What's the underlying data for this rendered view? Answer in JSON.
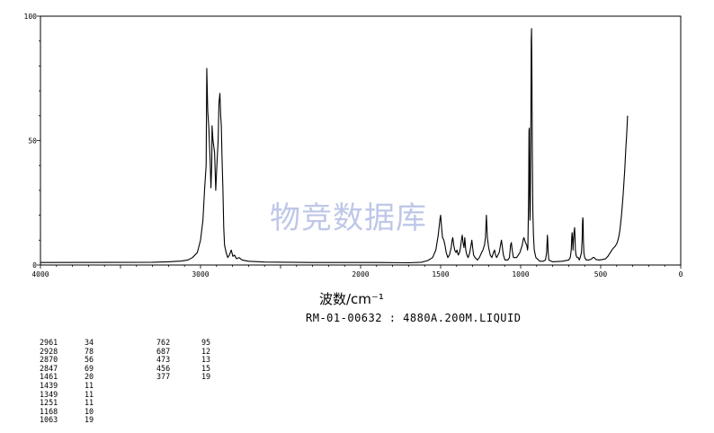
{
  "chart_data": {
    "type": "line",
    "title": "",
    "xlabel": "波数/cm⁻¹",
    "ylabel": "",
    "xlim": [
      4000,
      0
    ],
    "ylim": [
      0,
      100
    ],
    "x_ticks": [
      "4000",
      "3000",
      "2000",
      "1500",
      "1000",
      "500",
      "0"
    ],
    "y_ticks": [
      "0",
      "50",
      "100"
    ],
    "grid": false,
    "legend": "none",
    "line_color": "#000000",
    "series": [
      {
        "points": [
          [
            4000,
            1
          ],
          [
            3300,
            1.1
          ],
          [
            3200,
            1.3
          ],
          [
            3120,
            1.6
          ],
          [
            3080,
            2
          ],
          [
            3050,
            3
          ],
          [
            3020,
            5
          ],
          [
            3000,
            10
          ],
          [
            2985,
            18
          ],
          [
            2975,
            30
          ],
          [
            2965,
            40
          ],
          [
            2961,
            79
          ],
          [
            2955,
            62
          ],
          [
            2948,
            55
          ],
          [
            2940,
            42
          ],
          [
            2935,
            31
          ],
          [
            2930,
            40
          ],
          [
            2928,
            56
          ],
          [
            2922,
            50
          ],
          [
            2912,
            45
          ],
          [
            2905,
            30
          ],
          [
            2898,
            40
          ],
          [
            2890,
            50
          ],
          [
            2885,
            65
          ],
          [
            2879,
            69
          ],
          [
            2874,
            60
          ],
          [
            2870,
            56
          ],
          [
            2866,
            44
          ],
          [
            2860,
            30
          ],
          [
            2855,
            15
          ],
          [
            2850,
            8
          ],
          [
            2840,
            5
          ],
          [
            2830,
            3
          ],
          [
            2820,
            4
          ],
          [
            2808,
            6
          ],
          [
            2798,
            3.5
          ],
          [
            2788,
            4
          ],
          [
            2775,
            2.5
          ],
          [
            2760,
            3
          ],
          [
            2740,
            2
          ],
          [
            2700,
            1.5
          ],
          [
            2600,
            1.2
          ],
          [
            2300,
            1
          ],
          [
            1900,
            1
          ],
          [
            1700,
            0.9
          ],
          [
            1620,
            1.1
          ],
          [
            1580,
            1.8
          ],
          [
            1550,
            3
          ],
          [
            1530,
            6
          ],
          [
            1515,
            12
          ],
          [
            1505,
            18
          ],
          [
            1500,
            20
          ],
          [
            1494,
            15
          ],
          [
            1488,
            11
          ],
          [
            1480,
            10
          ],
          [
            1473,
            8
          ],
          [
            1465,
            5
          ],
          [
            1455,
            3
          ],
          [
            1445,
            4
          ],
          [
            1434,
            7
          ],
          [
            1428,
            10
          ],
          [
            1424,
            11
          ],
          [
            1418,
            8
          ],
          [
            1412,
            6
          ],
          [
            1404,
            5
          ],
          [
            1398,
            6
          ],
          [
            1390,
            4
          ],
          [
            1382,
            5
          ],
          [
            1376,
            7
          ],
          [
            1370,
            10
          ],
          [
            1365,
            12
          ],
          [
            1360,
            9
          ],
          [
            1354,
            7
          ],
          [
            1349,
            11
          ],
          [
            1343,
            6
          ],
          [
            1336,
            4
          ],
          [
            1328,
            3
          ],
          [
            1318,
            5
          ],
          [
            1310,
            8
          ],
          [
            1305,
            10
          ],
          [
            1300,
            7
          ],
          [
            1294,
            4
          ],
          [
            1285,
            3
          ],
          [
            1270,
            2
          ],
          [
            1258,
            3
          ],
          [
            1251,
            4
          ],
          [
            1244,
            5
          ],
          [
            1236,
            6
          ],
          [
            1226,
            8
          ],
          [
            1220,
            11
          ],
          [
            1214,
            20
          ],
          [
            1208,
            11
          ],
          [
            1200,
            7
          ],
          [
            1190,
            4
          ],
          [
            1180,
            3
          ],
          [
            1170,
            5
          ],
          [
            1163,
            6
          ],
          [
            1157,
            4
          ],
          [
            1150,
            3
          ],
          [
            1142,
            4
          ],
          [
            1134,
            5
          ],
          [
            1126,
            8
          ],
          [
            1120,
            10
          ],
          [
            1114,
            7
          ],
          [
            1108,
            4
          ],
          [
            1098,
            2
          ],
          [
            1080,
            2
          ],
          [
            1070,
            3
          ],
          [
            1063,
            8
          ],
          [
            1058,
            9
          ],
          [
            1053,
            6
          ],
          [
            1045,
            3
          ],
          [
            1025,
            3
          ],
          [
            1005,
            5
          ],
          [
            990,
            8
          ],
          [
            985,
            10
          ],
          [
            980,
            11
          ],
          [
            975,
            10
          ],
          [
            970,
            9
          ],
          [
            962,
            8
          ],
          [
            957,
            6
          ],
          [
            955,
            7
          ],
          [
            952,
            20
          ],
          [
            950,
            30
          ],
          [
            948,
            54
          ],
          [
            946,
            55
          ],
          [
            944,
            30
          ],
          [
            942,
            18
          ],
          [
            940,
            22
          ],
          [
            938,
            40
          ],
          [
            936,
            60
          ],
          [
            934,
            90
          ],
          [
            932,
            95
          ],
          [
            930,
            80
          ],
          [
            927,
            45
          ],
          [
            924,
            22
          ],
          [
            920,
            12
          ],
          [
            915,
            6
          ],
          [
            905,
            3
          ],
          [
            880,
            1.5
          ],
          [
            860,
            1.5
          ],
          [
            845,
            2
          ],
          [
            838,
            5
          ],
          [
            835,
            9
          ],
          [
            833,
            12
          ],
          [
            831,
            10
          ],
          [
            828,
            5
          ],
          [
            824,
            2
          ],
          [
            800,
            1.3
          ],
          [
            740,
            1.5
          ],
          [
            700,
            2
          ],
          [
            690,
            3
          ],
          [
            684,
            6
          ],
          [
            681,
            11
          ],
          [
            679,
            13
          ],
          [
            676,
            11
          ],
          [
            673,
            6
          ],
          [
            670,
            10
          ],
          [
            667,
            13
          ],
          [
            665,
            14
          ],
          [
            663,
            15
          ],
          [
            661,
            12
          ],
          [
            658,
            6
          ],
          [
            654,
            4
          ],
          [
            648,
            3
          ],
          [
            640,
            3
          ],
          [
            634,
            2
          ],
          [
            628,
            3
          ],
          [
            620,
            5
          ],
          [
            616,
            10
          ],
          [
            614,
            16
          ],
          [
            612,
            19
          ],
          [
            610,
            18
          ],
          [
            608,
            10
          ],
          [
            605,
            5
          ],
          [
            600,
            3
          ],
          [
            590,
            2
          ],
          [
            575,
            2
          ],
          [
            560,
            2.3
          ],
          [
            548,
            3
          ],
          [
            540,
            3
          ],
          [
            530,
            2.2
          ],
          [
            510,
            2
          ],
          [
            490,
            2.2
          ],
          [
            470,
            2.5
          ],
          [
            455,
            3.5
          ],
          [
            440,
            5
          ],
          [
            425,
            6.5
          ],
          [
            418,
            7
          ],
          [
            410,
            7.5
          ],
          [
            400,
            8.5
          ],
          [
            392,
            10
          ],
          [
            385,
            12
          ],
          [
            380,
            14
          ],
          [
            375,
            17
          ],
          [
            370,
            20
          ],
          [
            365,
            24
          ],
          [
            360,
            28
          ],
          [
            355,
            33
          ],
          [
            350,
            38
          ],
          [
            346,
            43
          ],
          [
            342,
            48
          ],
          [
            338,
            52
          ],
          [
            335,
            56
          ],
          [
            332,
            60
          ]
        ]
      }
    ]
  },
  "watermark_text": "物竞数据库",
  "x_axis_label": "波数/cm⁻¹",
  "sample_id": "RM-01-00632 : 4880A.200M.LIQUID",
  "peak_table": {
    "col1": [
      [
        "2961",
        "34"
      ],
      [
        "2928",
        "78"
      ],
      [
        "2870",
        "56"
      ],
      [
        "2847",
        "69"
      ],
      [
        "1461",
        "20"
      ],
      [
        "1439",
        "11"
      ],
      [
        "1349",
        "11"
      ],
      [
        "1251",
        "11"
      ],
      [
        "1168",
        "10"
      ],
      [
        "1063",
        "19"
      ]
    ],
    "col2": [
      [
        "762",
        "95"
      ],
      [
        "687",
        "12"
      ],
      [
        "473",
        "13"
      ],
      [
        "456",
        "15"
      ],
      [
        "377",
        "19"
      ]
    ]
  }
}
